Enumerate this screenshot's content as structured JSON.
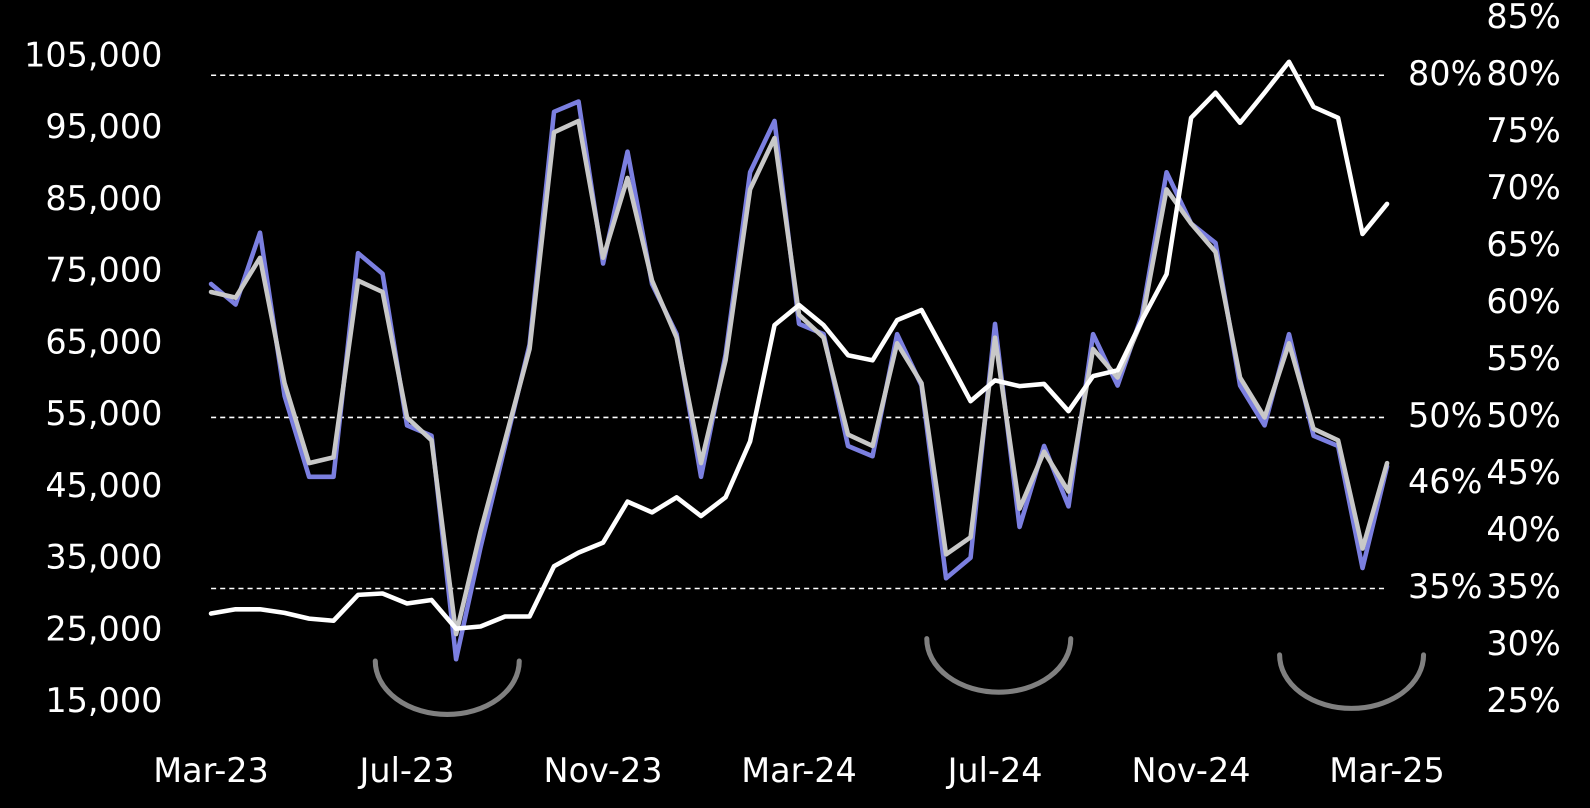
{
  "chart_data": {
    "type": "line",
    "x": [
      "Mar-23",
      null,
      null,
      null,
      null,
      null,
      null,
      null,
      "Jul-23",
      null,
      null,
      null,
      null,
      null,
      null,
      null,
      "Nov-23",
      null,
      null,
      null,
      null,
      null,
      null,
      null,
      "Mar-24",
      null,
      null,
      null,
      null,
      null,
      null,
      null,
      "Jul-24",
      null,
      null,
      null,
      null,
      null,
      null,
      null,
      "Nov-24",
      null,
      null,
      null,
      null,
      null,
      null,
      null,
      "Mar-25"
    ],
    "series": [
      {
        "color": "#ffffff",
        "axis": "y",
        "values": [
          27400,
          28000,
          28000,
          27500,
          26700,
          26400,
          30000,
          30200,
          28800,
          29300,
          25300,
          25600,
          27000,
          27000,
          34000,
          35900,
          37300,
          43000,
          41500,
          43600,
          41000,
          43600,
          51400,
          67600,
          70400,
          67600,
          63400,
          62700,
          68300,
          69700,
          63400,
          57000,
          59900,
          59100,
          59400,
          55600,
          60500,
          61300,
          68300,
          74700,
          96500,
          100000,
          95800,
          100000,
          104300,
          98000,
          96500,
          80300,
          84500
        ]
      },
      {
        "color": "#7b7fe0",
        "axis": "y2",
        "values": [
          61.7,
          59.9,
          66.2,
          51.9,
          44.8,
          44.8,
          64.4,
          62.6,
          49.3,
          48.4,
          28.8,
          38.6,
          47.5,
          56.4,
          76.8,
          77.7,
          63.5,
          73.3,
          61.7,
          57.3,
          44.8,
          55.5,
          71.5,
          76,
          58.2,
          57.3,
          47.5,
          46.6,
          57.3,
          52.8,
          35.9,
          37.7,
          58.2,
          40.4,
          47.5,
          42.2,
          57.3,
          52.8,
          59,
          71.5,
          67,
          65.3,
          52.8,
          49.3,
          57.3,
          48.4,
          47.5,
          36.8,
          45.7
        ]
      },
      {
        "color": "#c8c8c8",
        "axis": "y2",
        "values": [
          61,
          60.5,
          64,
          53,
          46,
          46.5,
          62,
          61,
          50,
          48,
          31,
          40,
          48,
          56,
          75,
          76,
          64,
          71,
          62,
          57,
          46,
          55,
          70,
          74.5,
          59,
          57,
          48.5,
          47.5,
          56.5,
          53,
          38,
          39.5,
          57,
          42,
          47,
          43.5,
          56,
          53.5,
          58.5,
          70,
          67,
          64.5,
          53.5,
          50,
          56.5,
          49,
          48,
          38.5,
          46
        ]
      }
    ],
    "ylim": [
      15000,
      105000
    ],
    "yticks": [
      {
        "value": 15000,
        "label": "15,000"
      },
      {
        "value": 25000,
        "label": "25,000"
      },
      {
        "value": 35000,
        "label": "35,000"
      },
      {
        "value": 45000,
        "label": "45,000"
      },
      {
        "value": 55000,
        "label": "55,000"
      },
      {
        "value": 65000,
        "label": "65,000"
      },
      {
        "value": 75000,
        "label": "75,000"
      },
      {
        "value": 85000,
        "label": "85,000"
      },
      {
        "value": 95000,
        "label": "95,000"
      },
      {
        "value": 105000,
        "label": "105,000"
      }
    ],
    "y2lim": [
      25,
      85
    ],
    "y2ticks": [
      {
        "value": 25,
        "label": "25%"
      },
      {
        "value": 30,
        "label": "30%"
      },
      {
        "value": 35,
        "label": "35%"
      },
      {
        "value": 40,
        "label": "40%"
      },
      {
        "value": 45,
        "label": "45%"
      },
      {
        "value": 50,
        "label": "50%"
      },
      {
        "value": 55,
        "label": "55%"
      },
      {
        "value": 60,
        "label": "60%"
      },
      {
        "value": 65,
        "label": "65%"
      },
      {
        "value": 70,
        "label": "70%"
      },
      {
        "value": 75,
        "label": "75%"
      },
      {
        "value": 80,
        "label": "80%"
      },
      {
        "value": 85,
        "label": "85%"
      }
    ],
    "reference_lines": [
      {
        "value": 80,
        "label": "80%"
      },
      {
        "value": 50,
        "label": "50%"
      },
      {
        "value": 35,
        "label": "35%"
      }
    ],
    "annotations": [
      {
        "value": 46,
        "label": "46%"
      }
    ]
  }
}
